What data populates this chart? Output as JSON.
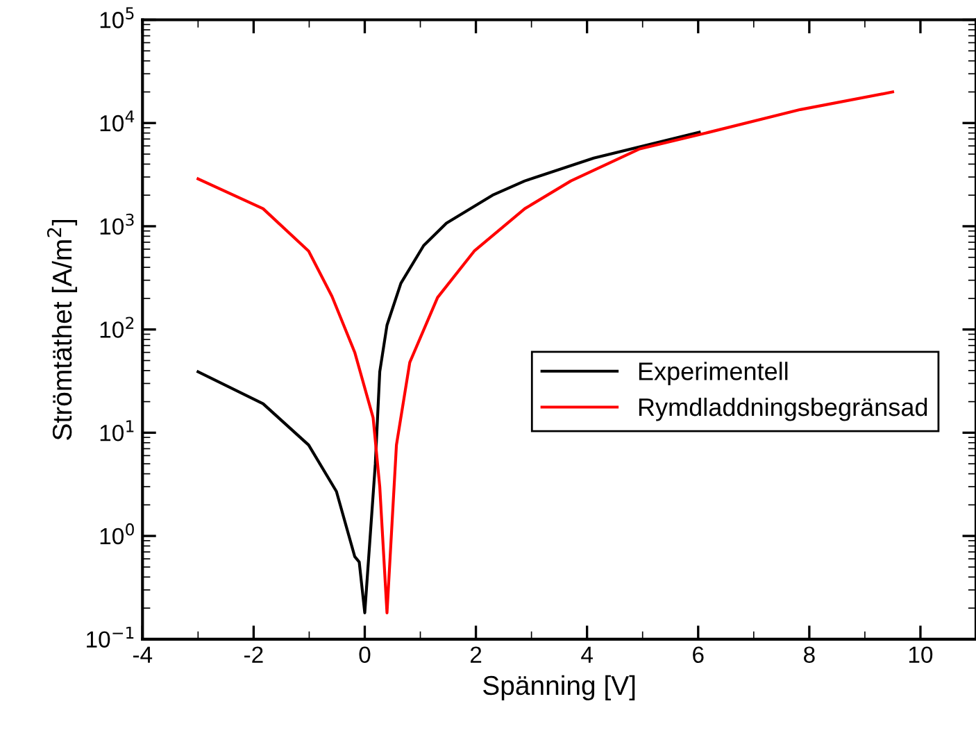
{
  "chart_data": {
    "type": "line",
    "xlabel": "Spänning [V]",
    "ylabel": "Strömtäthet [A/m$^{2}$]",
    "log": "y",
    "xlim": [
      -4,
      11
    ],
    "xticks": [
      -4,
      -2,
      0,
      2,
      4,
      6,
      8,
      10
    ],
    "ylim": [
      0.1,
      100000
    ],
    "yticks": [
      {
        "value": 0.1,
        "label": "10$^{−1}$"
      },
      {
        "value": 1,
        "label": "10$^{0}$"
      },
      {
        "value": 10,
        "label": "10$^{1}$"
      },
      {
        "value": 100,
        "label": "10$^{2}$"
      },
      {
        "value": 1000,
        "label": "10$^{3}$"
      },
      {
        "value": 10000,
        "label": "10$^{4}$"
      },
      {
        "value": 100000,
        "label": "10$^{5}$"
      }
    ],
    "grid": false,
    "legend": "center right",
    "line_style": "solid",
    "marker": "none",
    "series": [
      {
        "name": "Experimentell",
        "color": "#000000",
        "x": [
          -3,
          -1.83,
          -1.01,
          -0.51,
          -0.18,
          -0.1,
          0.0,
          0.19,
          0.27,
          0.4,
          0.65,
          1.06,
          1.47,
          2.3,
          2.88,
          4.12,
          6.02
        ],
        "values": [
          38.9,
          19.1,
          7.6,
          2.7,
          0.63,
          0.56,
          0.18,
          5.0,
          39,
          110,
          280,
          650,
          1070,
          2000,
          2750,
          4570,
          8130
        ]
      },
      {
        "name": "Rymdladdningsbegränsad",
        "color": "#ff0000",
        "x": [
          -3,
          -1.83,
          -1.01,
          -0.59,
          -0.18,
          0.15,
          0.27,
          0.4,
          0.57,
          0.81,
          1.31,
          1.97,
          2.88,
          3.71,
          4.95,
          6.19,
          7.84,
          9.5
        ],
        "values": [
          2880,
          1480,
          575,
          209,
          60,
          14,
          3.0,
          0.18,
          7.6,
          48,
          204,
          575,
          1480,
          2750,
          5620,
          8130,
          13500,
          20000
        ]
      }
    ]
  }
}
